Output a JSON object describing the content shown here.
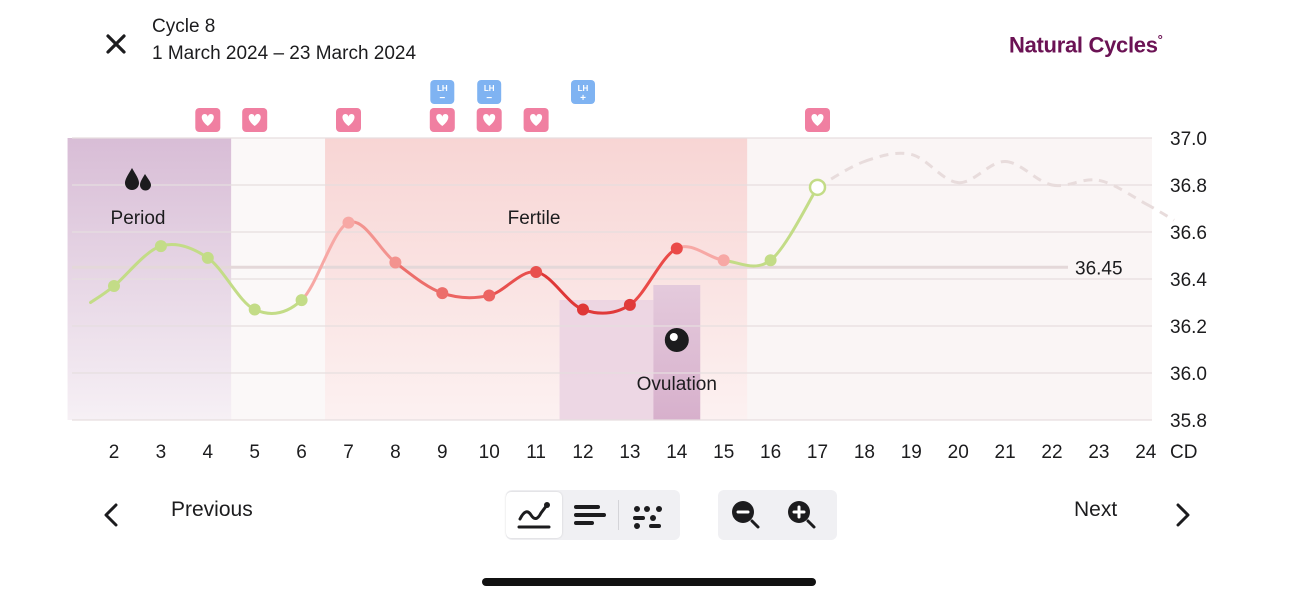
{
  "header": {
    "cycle_title": "Cycle 8",
    "date_range": "1 March 2024 – 23 March 2024",
    "brand": "Natural Cycles",
    "brand_mark": "°"
  },
  "chart_data": {
    "type": "line",
    "x_label": "CD",
    "x_ticks": [
      2,
      3,
      4,
      5,
      6,
      7,
      8,
      9,
      10,
      11,
      12,
      13,
      14,
      15,
      16,
      17,
      18,
      19,
      20,
      21,
      22,
      23,
      24
    ],
    "y_ticks": [
      37.0,
      36.8,
      36.6,
      36.4,
      36.2,
      36.0,
      35.8
    ],
    "ylim": [
      35.8,
      37.0
    ],
    "coverline": {
      "value": 36.45,
      "label": "36.45"
    },
    "phases": [
      {
        "name": "period",
        "label": "Period",
        "from": 1.5,
        "to": 4.5,
        "color": "#d9bdd5"
      },
      {
        "name": "fertile",
        "label": "Fertile",
        "from": 6.5,
        "to": 15.5,
        "color": "#f7d6d5"
      },
      {
        "name": "ovulation",
        "label": "Ovulation",
        "day": 14,
        "color": "#d9b3cf"
      }
    ],
    "series": [
      {
        "points": [
          {
            "x": 1.5,
            "y": 36.3,
            "c": "#c3dc87",
            "dot": false
          },
          {
            "x": 2,
            "y": 36.37,
            "c": "#c3dc87"
          },
          {
            "x": 3,
            "y": 36.54,
            "c": "#c3dc87"
          },
          {
            "x": 4,
            "y": 36.49,
            "c": "#c3dc87"
          },
          {
            "x": 5,
            "y": 36.27,
            "c": "#c3dc87"
          },
          {
            "x": 6,
            "y": 36.31,
            "c": "#c3dc87"
          },
          {
            "x": 7,
            "y": 36.64,
            "c": "#f7a8a5"
          },
          {
            "x": 8,
            "y": 36.47,
            "c": "#f3938f"
          },
          {
            "x": 9,
            "y": 36.34,
            "c": "#ec6e6b"
          },
          {
            "x": 10,
            "y": 36.33,
            "c": "#ec6462"
          },
          {
            "x": 11,
            "y": 36.43,
            "c": "#e8504e"
          },
          {
            "x": 12,
            "y": 36.27,
            "c": "#df3737"
          },
          {
            "x": 13,
            "y": 36.29,
            "c": "#e03a3a"
          },
          {
            "x": 14,
            "y": 36.53,
            "c": "#ea4a48"
          },
          {
            "x": 15,
            "y": 36.48,
            "c": "#f7a8a5"
          },
          {
            "x": 16,
            "y": 36.48,
            "c": "#c3dc87"
          },
          {
            "x": 17,
            "y": 36.79,
            "c": "#c3dc87",
            "hollow": true
          }
        ]
      },
      {
        "predicted": true,
        "points": [
          {
            "x": 17,
            "y": 36.79
          },
          {
            "x": 18,
            "y": 36.9
          },
          {
            "x": 19,
            "y": 36.93
          },
          {
            "x": 20,
            "y": 36.81
          },
          {
            "x": 21,
            "y": 36.9
          },
          {
            "x": 22,
            "y": 36.8
          },
          {
            "x": 23,
            "y": 36.82
          },
          {
            "x": 24,
            "y": 36.72
          },
          {
            "x": 24.6,
            "y": 36.65
          }
        ]
      }
    ],
    "markers": {
      "heart_days": [
        4,
        5,
        7,
        9,
        10,
        11,
        17
      ],
      "lh_tests": [
        {
          "day": 9,
          "label": "LH",
          "result": "−"
        },
        {
          "day": 10,
          "label": "LH",
          "result": "−"
        },
        {
          "day": 12,
          "label": "LH",
          "result": "+"
        }
      ]
    }
  },
  "footer": {
    "previous_label": "Previous",
    "next_label": "Next",
    "view_modes": [
      "curve-view-icon",
      "bar-view-icon",
      "dot-view-icon"
    ],
    "zoom": [
      "zoom-out-icon",
      "zoom-in-icon"
    ]
  },
  "colors": {
    "brand": "#6b1254",
    "lh_blue": "#7fb3f2",
    "heart_pink": "#f07fa1",
    "green": "#c3dc87",
    "red": "#e03a3a"
  }
}
